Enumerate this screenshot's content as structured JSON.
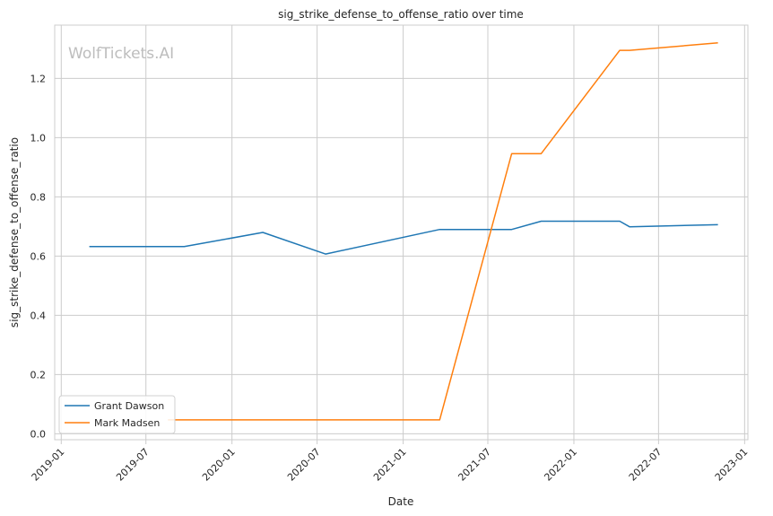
{
  "chart_data": {
    "type": "line",
    "title": "sig_strike_defense_to_offense_ratio over time",
    "xlabel": "Date",
    "ylabel": "sig_strike_defense_to_offense_ratio",
    "watermark": "WolfTickets.AI",
    "xlim": [
      "2018-12-18",
      "2023-01-08"
    ],
    "ylim": [
      -0.02,
      1.38
    ],
    "x_ticks": [
      "2019-01",
      "2019-07",
      "2020-01",
      "2020-07",
      "2021-01",
      "2021-07",
      "2022-01",
      "2022-07",
      "2023-01"
    ],
    "y_ticks": [
      "0.0",
      "0.2",
      "0.4",
      "0.6",
      "0.8",
      "1.0",
      "1.2"
    ],
    "y_tick_values": [
      0.0,
      0.2,
      0.4,
      0.6,
      0.8,
      1.0,
      1.2
    ],
    "grid": true,
    "legend_position": "lower-left",
    "series": [
      {
        "name": "Grant Dawson",
        "color": "#1f77b4",
        "points": [
          {
            "x": "2019-03-02",
            "y": 0.632
          },
          {
            "x": "2019-09-21",
            "y": 0.632
          },
          {
            "x": "2020-03-07",
            "y": 0.68
          },
          {
            "x": "2020-07-19",
            "y": 0.607
          },
          {
            "x": "2021-03-20",
            "y": 0.69
          },
          {
            "x": "2021-08-21",
            "y": 0.69
          },
          {
            "x": "2021-10-23",
            "y": 0.718
          },
          {
            "x": "2022-04-09",
            "y": 0.718
          },
          {
            "x": "2022-04-30",
            "y": 0.699
          },
          {
            "x": "2022-11-05",
            "y": 0.706
          }
        ]
      },
      {
        "name": "Mark Madsen",
        "color": "#ff7f0e",
        "points": [
          {
            "x": "2019-08-17",
            "y": 0.047
          },
          {
            "x": "2021-03-20",
            "y": 0.047
          },
          {
            "x": "2021-08-21",
            "y": 0.946
          },
          {
            "x": "2021-10-23",
            "y": 0.946
          },
          {
            "x": "2022-04-09",
            "y": 1.295
          },
          {
            "x": "2022-04-30",
            "y": 1.295
          },
          {
            "x": "2022-11-05",
            "y": 1.32
          }
        ]
      }
    ]
  }
}
